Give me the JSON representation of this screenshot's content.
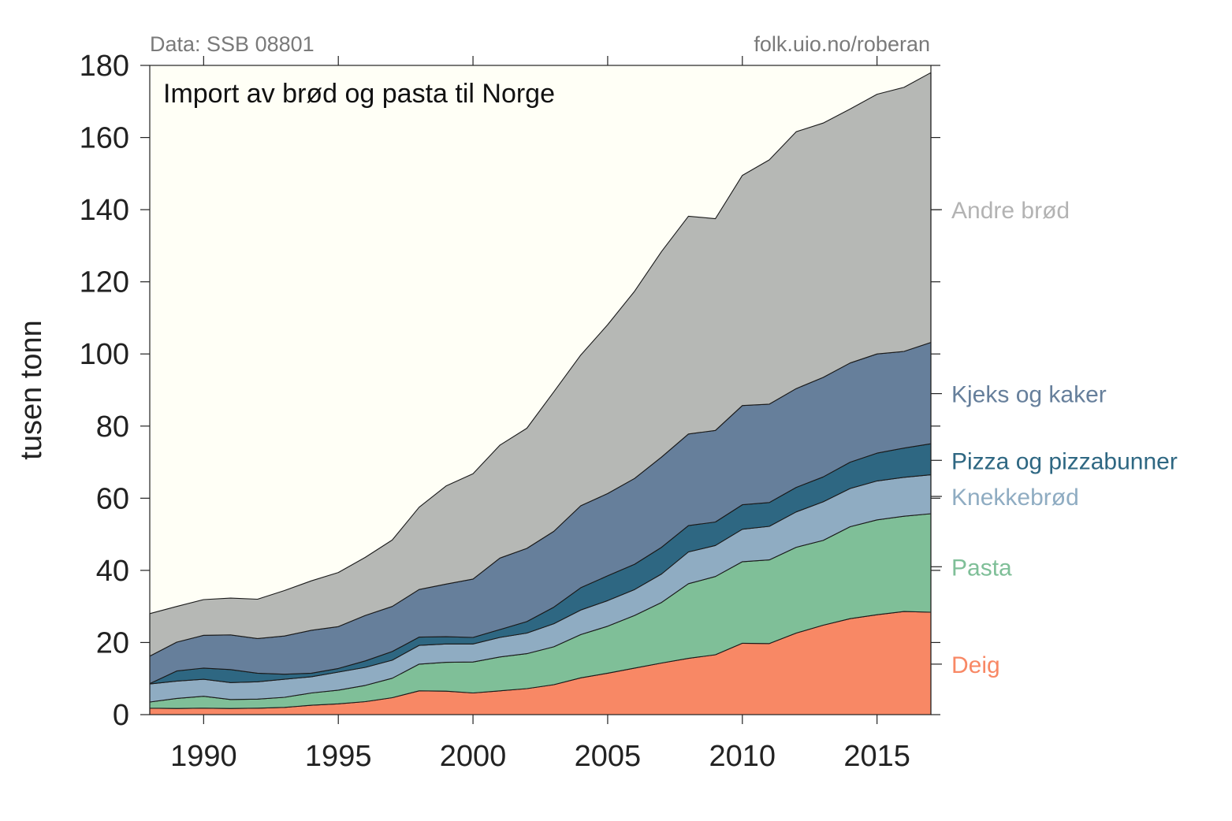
{
  "chart_data": {
    "type": "area",
    "stacked": true,
    "title": "Import av brød og pasta til Norge",
    "source_left": "Data: SSB 08801",
    "source_right": "folk.uio.no/roberan",
    "ylabel": "tusen tonn",
    "xlim": [
      1988,
      2017
    ],
    "ylim": [
      0,
      180
    ],
    "xticks": [
      1990,
      1995,
      2000,
      2005,
      2010,
      2015
    ],
    "yticks": [
      0,
      20,
      40,
      60,
      80,
      100,
      120,
      140,
      160,
      180
    ],
    "background_color": "#fffff6",
    "legend": "inline-right",
    "x": [
      1988,
      1989,
      1990,
      1991,
      1992,
      1993,
      1994,
      1995,
      1996,
      1997,
      1998,
      1999,
      2000,
      2001,
      2002,
      2003,
      2004,
      2005,
      2006,
      2007,
      2008,
      2009,
      2010,
      2011,
      2012,
      2013,
      2014,
      2015,
      2016,
      2017
    ],
    "series": [
      {
        "name": "Deig",
        "color": "#f88865",
        "values": [
          1.8,
          1.7,
          1.8,
          1.7,
          1.8,
          2.0,
          2.6,
          3.0,
          3.6,
          4.7,
          6.6,
          6.5,
          6.0,
          6.6,
          7.2,
          8.3,
          10.2,
          11.5,
          12.9,
          14.3,
          15.6,
          16.6,
          19.8,
          19.7,
          22.6,
          24.8,
          26.6,
          27.7,
          28.6,
          28.4
        ]
      },
      {
        "name": "Pasta",
        "color": "#7fbf98",
        "values": [
          1.7,
          2.8,
          3.3,
          2.5,
          2.5,
          2.8,
          3.4,
          3.8,
          4.5,
          5.4,
          7.4,
          8.0,
          8.6,
          9.4,
          9.7,
          10.5,
          12.0,
          13.0,
          14.6,
          16.8,
          20.7,
          21.7,
          22.6,
          23.2,
          23.8,
          23.5,
          25.5,
          26.3,
          26.4,
          27.3
        ]
      },
      {
        "name": "Knekkebrød",
        "color": "#8facc2",
        "values": [
          5.0,
          4.8,
          4.7,
          4.7,
          4.8,
          5.0,
          4.5,
          5.0,
          5.0,
          5.0,
          5.2,
          5.1,
          5.0,
          5.4,
          5.7,
          6.4,
          6.8,
          7.1,
          7.2,
          7.9,
          8.8,
          8.6,
          9.0,
          9.3,
          9.8,
          10.7,
          10.6,
          10.8,
          10.8,
          10.8
        ]
      },
      {
        "name": "Pizza og pizzabunner",
        "color": "#2e6782",
        "values": [
          0.1,
          2.8,
          3.1,
          3.6,
          2.4,
          1.4,
          1.0,
          1.0,
          1.8,
          2.4,
          2.3,
          2.0,
          1.8,
          2.2,
          3.2,
          4.6,
          6.2,
          6.9,
          7.0,
          7.4,
          7.3,
          6.5,
          6.8,
          6.6,
          6.8,
          6.9,
          7.3,
          7.7,
          8.1,
          8.6
        ]
      },
      {
        "name": "Kjeks og kaker",
        "color": "#667f9b",
        "values": [
          7.6,
          8.0,
          9.1,
          9.6,
          9.6,
          10.6,
          11.9,
          11.6,
          12.6,
          12.5,
          13.2,
          14.6,
          16.2,
          19.8,
          20.3,
          21.0,
          22.7,
          22.8,
          23.8,
          25.0,
          25.4,
          25.4,
          27.5,
          27.3,
          27.4,
          27.6,
          27.5,
          27.5,
          26.8,
          28.1
        ]
      },
      {
        "name": "Andre brød",
        "color": "#b6b8b5",
        "values": [
          11.8,
          9.9,
          9.9,
          10.2,
          10.9,
          12.6,
          13.7,
          15.0,
          16.1,
          18.4,
          22.8,
          27.2,
          29.2,
          31.3,
          33.3,
          38.7,
          41.8,
          46.8,
          51.9,
          57.0,
          60.4,
          58.7,
          63.8,
          67.7,
          71.2,
          70.5,
          70.4,
          72.0,
          73.2,
          74.8
        ]
      }
    ]
  }
}
